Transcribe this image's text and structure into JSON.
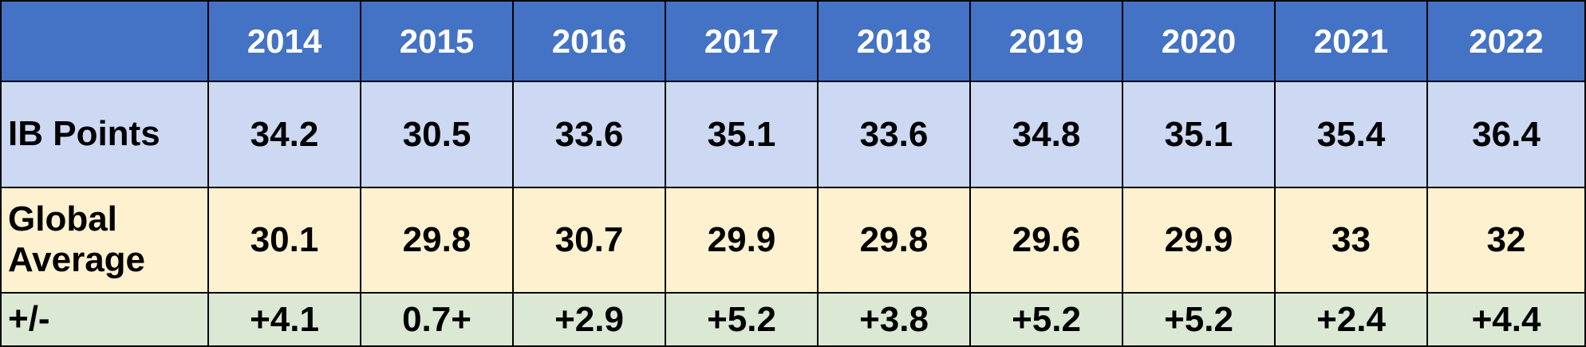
{
  "chart_data": {
    "type": "table",
    "columns": [
      "",
      "2014",
      "2015",
      "2016",
      "2017",
      "2018",
      "2019",
      "2020",
      "2021",
      "2022"
    ],
    "rows": [
      {
        "label": "IB Points",
        "values": [
          "34.2",
          "30.5",
          "33.6",
          "35.1",
          "33.6",
          "34.8",
          "35.1",
          "35.4",
          "36.4"
        ]
      },
      {
        "label": "Global Average",
        "values": [
          "30.1",
          "29.8",
          "30.7",
          "29.9",
          "29.8",
          "29.6",
          "29.9",
          "33",
          "32"
        ]
      },
      {
        "label": "+/-",
        "values": [
          "+4.1",
          "0.7+",
          "+2.9",
          "+5.2",
          "+3.8",
          "+5.2",
          "+5.2",
          "+2.4",
          "+4.4"
        ]
      }
    ]
  },
  "colors": {
    "header_bg": "#4472c4",
    "header_text": "#ffffff",
    "row1_bg": "#cdd9f3",
    "row2_bg": "#fdf1cf",
    "row3_bg": "#dae8d4",
    "border": "#000000"
  }
}
